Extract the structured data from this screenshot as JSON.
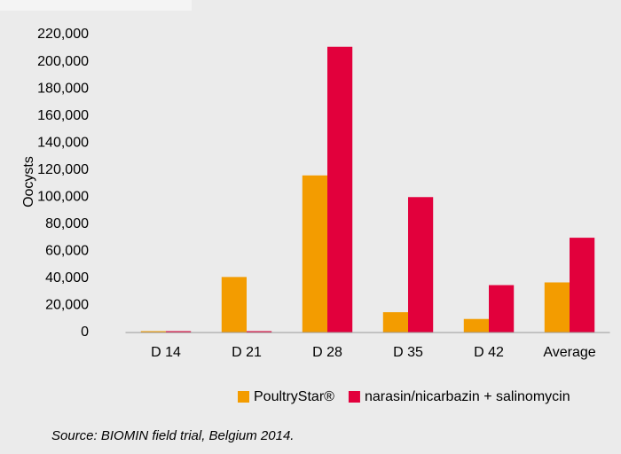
{
  "chart_data": {
    "type": "bar",
    "y_label": "Oocysts",
    "categories": [
      "D 14",
      "D 21",
      "D 28",
      "D 35",
      "D 42",
      "Average"
    ],
    "series": [
      {
        "name": "PoultryStar®",
        "color": "#f39c00",
        "values": [
          1000,
          41000,
          116000,
          15000,
          10000,
          37000
        ]
      },
      {
        "name": "narasin/nicarbazin + salinomycin",
        "color": "#e2003c",
        "values": [
          1000,
          1000,
          211000,
          100000,
          35000,
          70000
        ]
      }
    ],
    "ylim": [
      0,
      220000
    ],
    "yticks": [
      0,
      {
        "value": 20000,
        "label": "20,000"
      },
      {
        "value": 40000,
        "label": "40,000"
      },
      {
        "value": 60000,
        "label": "60,000"
      },
      {
        "value": 80000,
        "label": "80,000"
      },
      {
        "value": 100000,
        "label": "100,000"
      },
      {
        "value": 120000,
        "label": "120,000"
      },
      {
        "value": 140000,
        "label": "140,000"
      },
      {
        "value": 160000,
        "label": "160,000"
      },
      {
        "value": 180000,
        "label": "180,000"
      },
      {
        "value": 200000,
        "label": "200,000"
      },
      {
        "value": 220000,
        "label": "220,000"
      }
    ],
    "legend": "bottom",
    "source": "Source: BIOMIN field trial, Belgium 2014."
  }
}
